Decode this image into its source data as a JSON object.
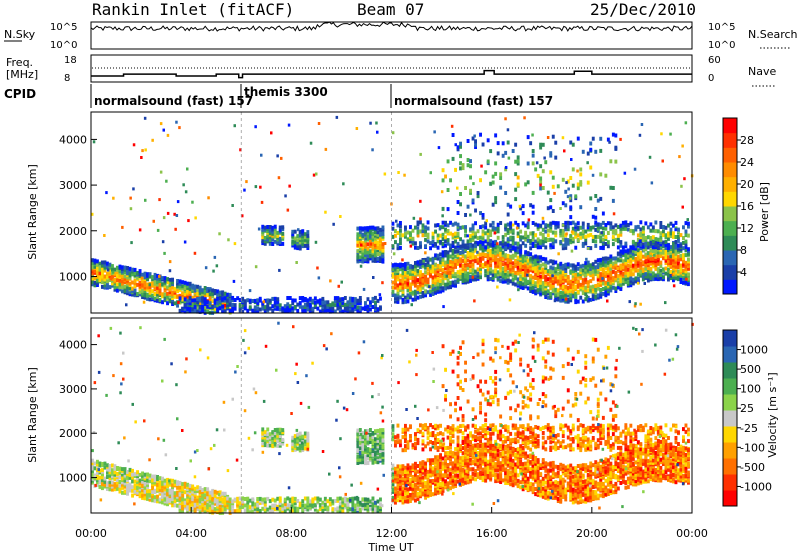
{
  "header": {
    "title": "Rankin Inlet (fitACF)",
    "beam": "Beam 07",
    "date": "25/Dec/2010"
  },
  "chart_data": [
    {
      "type": "line",
      "name_label": "N.Sky",
      "right_label": "N.Search",
      "y_ticks": [
        "10^5",
        "10^0"
      ],
      "right_ticks": [
        "10^5",
        "10^0"
      ],
      "note": ""
    },
    {
      "type": "line",
      "left_label_top": "Freq.",
      "left_label_bottom": "[MHz]",
      "y_ticks": [
        "18",
        "8"
      ],
      "right_label": "Nave",
      "right_ticks": [
        "60",
        "0"
      ],
      "freq_steps": [
        {
          "x": 0.0,
          "y": 10.2
        },
        {
          "x": 1.3,
          "y": 10.9
        },
        {
          "x": 3.4,
          "y": 10.2
        },
        {
          "x": 4.1,
          "y": 10.2
        },
        {
          "x": 5.0,
          "y": 10.9
        },
        {
          "x": 5.9,
          "y": 9.6
        },
        {
          "x": 6.05,
          "y": 10.9
        },
        {
          "x": 12.0,
          "y": 10.9
        },
        {
          "x": 15.7,
          "y": 12.2
        },
        {
          "x": 16.1,
          "y": 10.9
        },
        {
          "x": 19.3,
          "y": 12.0
        },
        {
          "x": 20.0,
          "y": 10.9
        },
        {
          "x": 24.0,
          "y": 10.9
        }
      ]
    },
    {
      "type": "heatmap",
      "name": "power",
      "ylabel": "Slant Range [km]",
      "y_ticks": [
        "1000",
        "2000",
        "3000",
        "4000"
      ],
      "ylim": [
        200,
        4600
      ],
      "colorbar_label": "Power [dB]",
      "colorbar_ticks": [
        "4",
        "8",
        "12",
        "16",
        "20",
        "24",
        "28"
      ],
      "colors": [
        "#0018ff",
        "#1a3fa8",
        "#2a66b3",
        "#2e8b57",
        "#4caf50",
        "#8bc34a",
        "#ffd700",
        "#ffb000",
        "#ff8c00",
        "#ff6000",
        "#ff3000",
        "#ff0000"
      ]
    },
    {
      "type": "heatmap",
      "name": "velocity",
      "ylabel": "Slant Range [km]",
      "y_ticks": [
        "1000",
        "2000",
        "3000",
        "4000"
      ],
      "ylim": [
        200,
        4600
      ],
      "xlabel": "Time UT",
      "x_ticks": [
        "00:00",
        "04:00",
        "08:00",
        "12:00",
        "16:00",
        "20:00",
        "00:00"
      ],
      "colorbar_label": "Velocity [m s⁻¹]",
      "colorbar_ticks": [
        "1000",
        "500",
        "100",
        "25",
        "-25",
        "-100",
        "-500",
        "-1000"
      ],
      "colors": [
        "#1a3fa8",
        "#2a66b3",
        "#2e8b57",
        "#4caf50",
        "#8bd34a",
        "#c8c8c8",
        "#ffd700",
        "#ffa000",
        "#ff7000",
        "#ff3000",
        "#ff0000"
      ]
    }
  ],
  "cpid": {
    "label": "CPID",
    "modes": [
      {
        "text": "normalsound (fast) 157",
        "start": 0.0
      },
      {
        "text": "themis 3300",
        "start": 6.0
      },
      {
        "text": "normalsound (fast) 157",
        "start": 12.0
      }
    ]
  }
}
